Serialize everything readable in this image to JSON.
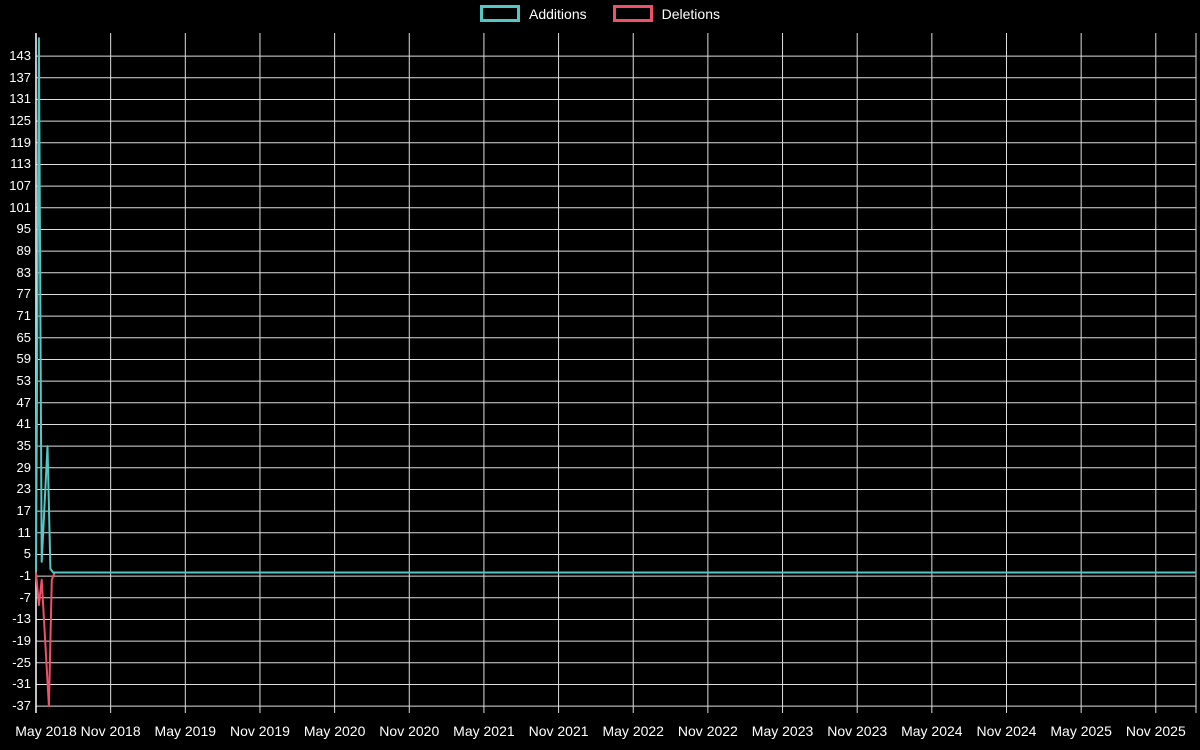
{
  "chart_data": {
    "type": "line",
    "title": "",
    "legend_position": "top",
    "background_color": "#000000",
    "text_color": "#ffffff",
    "grid": {
      "show": true,
      "color": "#dedede"
    },
    "axis_line_color": "#ffffff",
    "x_axis": {
      "labels": [
        "May 2018",
        "Nov 2018",
        "May 2019",
        "Nov 2019",
        "May 2020",
        "Nov 2020",
        "May 2021",
        "Nov 2021",
        "May 2022",
        "Nov 2022",
        "May 2023",
        "Nov 2023",
        "May 2024",
        "Nov 2024",
        "May 2025",
        "Nov 2025"
      ],
      "unit": "weeks",
      "label_interval_weeks": 26,
      "total_weeks": 404
    },
    "y_axis": {
      "ticks": [
        143,
        137,
        131,
        125,
        119,
        113,
        107,
        101,
        95,
        89,
        83,
        77,
        71,
        65,
        59,
        53,
        47,
        41,
        35,
        29,
        23,
        17,
        11,
        5,
        -1,
        -7,
        -13,
        -19,
        -25,
        -31,
        -37
      ],
      "min": -38.9,
      "max": 149.4
    },
    "series": [
      {
        "name": "Additions",
        "color": "#52c7c4",
        "points": [
          [
            0,
            0
          ],
          [
            1,
            148
          ],
          [
            2,
            3
          ],
          [
            4,
            35
          ],
          [
            5,
            1
          ],
          [
            6,
            0
          ],
          [
            404,
            0
          ]
        ]
      },
      {
        "name": "Deletions",
        "color": "#ee5169",
        "points": [
          [
            0,
            0
          ],
          [
            1,
            -9
          ],
          [
            2,
            -2
          ],
          [
            4.5,
            -37
          ],
          [
            5.5,
            -2
          ],
          [
            6.5,
            0
          ],
          [
            404,
            0
          ]
        ]
      }
    ]
  }
}
